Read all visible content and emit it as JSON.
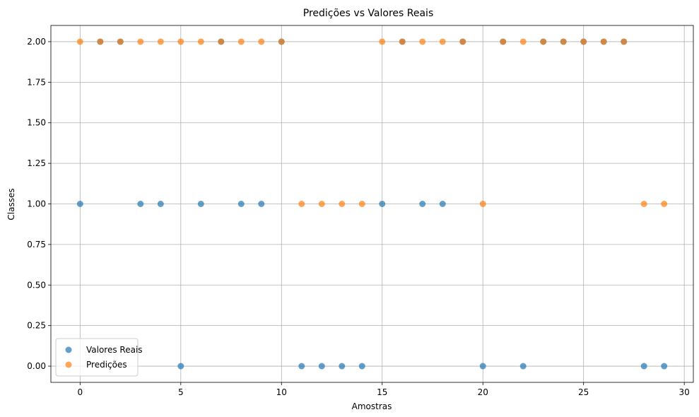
{
  "chart_data": {
    "type": "scatter",
    "title": "Predições vs Valores Reais",
    "xlabel": "Amostras",
    "ylabel": "Classes",
    "xlim": [
      -1.45,
      30.45
    ],
    "ylim": [
      -0.1,
      2.1
    ],
    "xticks": [
      0,
      5,
      10,
      15,
      20,
      25,
      30
    ],
    "yticks": [
      0.0,
      0.25,
      0.5,
      0.75,
      1.0,
      1.25,
      1.5,
      1.75,
      2.0
    ],
    "ytick_labels": [
      "0.00",
      "0.25",
      "0.50",
      "0.75",
      "1.00",
      "1.25",
      "1.50",
      "1.75",
      "2.00"
    ],
    "grid": true,
    "legend_position": "lower-left",
    "series": [
      {
        "name": "Valores Reais",
        "color": "#1f77b4",
        "x": [
          0,
          1,
          2,
          3,
          4,
          5,
          6,
          7,
          8,
          9,
          10,
          11,
          12,
          13,
          14,
          15,
          16,
          17,
          18,
          19,
          20,
          21,
          22,
          23,
          24,
          25,
          26,
          27,
          28,
          29
        ],
        "y": [
          1,
          2,
          2,
          1,
          1,
          0,
          1,
          2,
          1,
          1,
          2,
          0,
          0,
          0,
          0,
          1,
          2,
          1,
          1,
          2,
          0,
          2,
          0,
          2,
          2,
          2,
          2,
          2,
          0,
          0
        ]
      },
      {
        "name": "Predições",
        "color": "#ff7f0e",
        "x": [
          0,
          1,
          2,
          3,
          4,
          5,
          6,
          7,
          8,
          9,
          10,
          11,
          12,
          13,
          14,
          15,
          16,
          17,
          18,
          19,
          20,
          21,
          22,
          23,
          24,
          25,
          26,
          27,
          28,
          29
        ],
        "y": [
          2,
          2,
          2,
          2,
          2,
          2,
          2,
          2,
          2,
          2,
          2,
          1,
          1,
          1,
          1,
          2,
          2,
          2,
          2,
          2,
          1,
          2,
          2,
          2,
          2,
          2,
          2,
          2,
          1,
          1
        ]
      }
    ]
  }
}
